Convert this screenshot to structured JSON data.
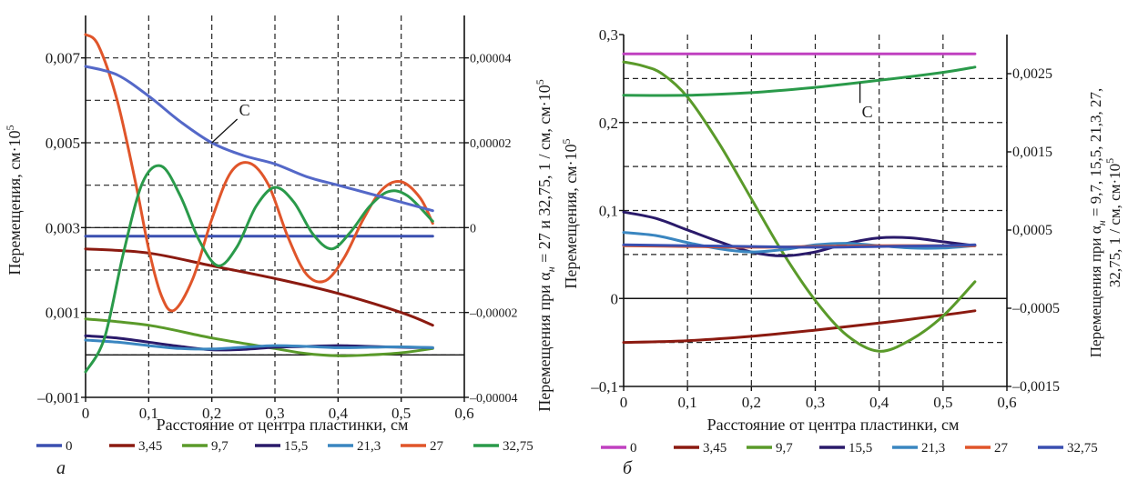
{
  "chart_data": [
    {
      "type": "line",
      "panel_label": "а",
      "xlabel": "Расстояние от центра пластинки, см",
      "ylabel_left": "Перемещения, см·10",
      "ylabel_left_sup": "5",
      "ylabel_right": "Перемещения при α",
      "ylabel_right_sub": "н",
      "ylabel_right_tail": " =  27 и 32,75, 1 / см,  см·10",
      "ylabel_right_sup": "5",
      "xlim": [
        0,
        0.6
      ],
      "ylim_left": [
        -0.001,
        0.008
      ],
      "ylim_right": [
        -4e-05,
        5e-05
      ],
      "x_ticks": [
        "0",
        "0,1",
        "0,2",
        "0,3",
        "0,4",
        "0,5",
        "0,6"
      ],
      "y_ticks_left": [
        "0,007",
        "0,005",
        "0,003",
        "0,001",
        "–0,001"
      ],
      "y_ticks_right": [
        "0,00004",
        "0,00002",
        "0",
        "–0,00002",
        "–0,00004"
      ],
      "annotations": [
        {
          "text": "C",
          "x": 0.2,
          "y": 0.005
        }
      ],
      "grid": true,
      "legend_position": "bottom",
      "series": [
        {
          "name": "0",
          "color": "#3a4fb0",
          "axis": "left",
          "x": [
            0,
            0.55
          ],
          "y": [
            0.0028,
            0.0028
          ]
        },
        {
          "name": "3,45",
          "color": "#8b1a10",
          "axis": "left",
          "x": [
            0,
            0.1,
            0.2,
            0.3,
            0.4,
            0.5,
            0.55
          ],
          "y": [
            0.0025,
            0.0024,
            0.0021,
            0.0018,
            0.00145,
            0.001,
            0.0007
          ]
        },
        {
          "name": "9,7",
          "color": "#5a9a2a",
          "axis": "left",
          "x": [
            0,
            0.1,
            0.2,
            0.3,
            0.35,
            0.4,
            0.45,
            0.5,
            0.55
          ],
          "y": [
            0.00085,
            0.0007,
            0.0004,
            0.00015,
            3e-05,
            -2e-05,
            0.0,
            5e-05,
            0.00015
          ]
        },
        {
          "name": "15,5",
          "color": "#2a1a6a",
          "axis": "left",
          "x": [
            0,
            0.05,
            0.1,
            0.15,
            0.2,
            0.25,
            0.3,
            0.35,
            0.4,
            0.45,
            0.5,
            0.55
          ],
          "y": [
            0.00045,
            0.0004,
            0.0003,
            0.0002,
            0.00012,
            0.00013,
            0.00018,
            0.0002,
            0.00022,
            0.0002,
            0.00018,
            0.00017
          ]
        },
        {
          "name": "21,3",
          "color": "#3a86c0",
          "axis": "left",
          "x": [
            0,
            0.05,
            0.1,
            0.15,
            0.2,
            0.25,
            0.3,
            0.35,
            0.4,
            0.45,
            0.5,
            0.55
          ],
          "y": [
            0.00035,
            0.0003,
            0.00022,
            0.00015,
            0.00014,
            0.00018,
            0.00022,
            0.0002,
            0.00017,
            0.00018,
            0.00019,
            0.00017
          ]
        },
        {
          "name": "27",
          "color": "#e0552a",
          "axis": "right",
          "x": [
            0,
            0.02,
            0.05,
            0.08,
            0.1,
            0.12,
            0.14,
            0.17,
            0.2,
            0.23,
            0.26,
            0.29,
            0.32,
            0.35,
            0.38,
            0.41,
            0.44,
            0.47,
            0.5,
            0.53,
            0.55
          ],
          "y": [
            4.55e-05,
            4.3e-05,
            3e-05,
            1e-05,
            -5e-06,
            -1.6e-05,
            -1.95e-05,
            -1.2e-05,
            2e-06,
            1.3e-05,
            1.52e-05,
            1e-05,
            -2e-06,
            -1.1e-05,
            -1.25e-05,
            -7e-06,
            2e-06,
            9e-06,
            1.08e-05,
            7e-06,
            1e-06
          ]
        },
        {
          "name": "32,75",
          "color": "#2a9a4a",
          "axis": "right",
          "x": [
            0,
            0.03,
            0.06,
            0.09,
            0.12,
            0.15,
            0.18,
            0.21,
            0.24,
            0.27,
            0.3,
            0.33,
            0.36,
            0.39,
            0.42,
            0.45,
            0.48,
            0.51,
            0.55
          ],
          "y": [
            -3.4e-05,
            -2.6e-05,
            -6e-06,
            1.05e-05,
            1.45e-05,
            7.5e-06,
            -3e-06,
            -9e-06,
            -4.5e-06,
            5e-06,
            9.5e-06,
            6e-06,
            -1.5e-06,
            -5e-06,
            -1e-06,
            5e-06,
            8.5e-06,
            7.5e-06,
            1.5e-06
          ]
        },
        {
          "name": "C",
          "color": "#5468c8",
          "axis": "left",
          "in_legend": false,
          "x": [
            0,
            0.05,
            0.1,
            0.15,
            0.2,
            0.25,
            0.3,
            0.35,
            0.4,
            0.45,
            0.5,
            0.55
          ],
          "y": [
            0.0068,
            0.0066,
            0.0061,
            0.0055,
            0.005,
            0.0047,
            0.0045,
            0.0042,
            0.004,
            0.0038,
            0.0036,
            0.0034
          ]
        }
      ]
    },
    {
      "type": "line",
      "panel_label": "б",
      "xlabel": "Расстояние от центра пластинки, см",
      "ylabel_left": "Перемещения, см·10",
      "ylabel_left_sup": "5",
      "ylabel_right": "Перемещения при α",
      "ylabel_right_sub": "н",
      "ylabel_right_tail": " = 9,7, 15,5, 21,3, 27,",
      "ylabel_right_line2": "32,75, 1 / см,  см·10",
      "ylabel_right_sup": "5",
      "xlim": [
        0,
        0.6
      ],
      "ylim_left": [
        -0.1,
        0.3
      ],
      "ylim_right": [
        -0.0015,
        0.003
      ],
      "x_ticks": [
        "0",
        "0,1",
        "0,2",
        "0,3",
        "0,4",
        "0,5",
        "0,6"
      ],
      "y_ticks_left": [
        "0,3",
        "0,2",
        "0,1",
        "0",
        "–0,1"
      ],
      "y_ticks_right": [
        "0,0025",
        "0,0015",
        "0,0005",
        "–0,0005",
        "–0,0015"
      ],
      "annotations": [
        {
          "text": "C",
          "x": 0.37,
          "y": 0.245
        }
      ],
      "grid": true,
      "legend_position": "bottom",
      "series": [
        {
          "name": "0",
          "color": "#c040c0",
          "axis": "left",
          "x": [
            0,
            0.55
          ],
          "y": [
            0.278,
            0.278
          ]
        },
        {
          "name": "3,45",
          "color": "#8b1a10",
          "axis": "left",
          "x": [
            0,
            0.1,
            0.2,
            0.3,
            0.4,
            0.5,
            0.55
          ],
          "y": [
            -0.05,
            -0.048,
            -0.043,
            -0.036,
            -0.028,
            -0.019,
            -0.014
          ]
        },
        {
          "name": "9,7",
          "color": "#5a9a2a",
          "axis": "right",
          "x": [
            0,
            0.03,
            0.06,
            0.1,
            0.15,
            0.2,
            0.25,
            0.3,
            0.35,
            0.4,
            0.45,
            0.5,
            0.55
          ],
          "y": [
            0.00265,
            0.0026,
            0.0025,
            0.0022,
            0.0016,
            0.0009,
            0.0002,
            -0.0004,
            -0.00085,
            -0.00105,
            -0.0009,
            -0.0006,
            -0.00016
          ]
        },
        {
          "name": "15,5",
          "color": "#2a1a6a",
          "axis": "right",
          "x": [
            0,
            0.05,
            0.1,
            0.15,
            0.2,
            0.25,
            0.3,
            0.35,
            0.4,
            0.45,
            0.5,
            0.55
          ],
          "y": [
            0.00073,
            0.00065,
            0.0005,
            0.00035,
            0.00022,
            0.00017,
            0.00022,
            0.00033,
            0.0004,
            0.0004,
            0.00035,
            0.0003
          ]
        },
        {
          "name": "21,3",
          "color": "#3a86c0",
          "axis": "right",
          "x": [
            0,
            0.05,
            0.1,
            0.15,
            0.2,
            0.25,
            0.3,
            0.35,
            0.4,
            0.45,
            0.5,
            0.55
          ],
          "y": [
            0.00047,
            0.00043,
            0.00034,
            0.00026,
            0.00022,
            0.00025,
            0.00031,
            0.00033,
            0.0003,
            0.00027,
            0.00027,
            0.0003
          ]
        },
        {
          "name": "27",
          "color": "#e0552a",
          "axis": "right",
          "x": [
            0,
            0.1,
            0.2,
            0.3,
            0.4,
            0.5,
            0.55
          ],
          "y": [
            0.0003,
            0.00029,
            0.00028,
            0.00029,
            0.0003,
            0.0003,
            0.0003
          ]
        },
        {
          "name": "32,75",
          "color": "#3a4fb0",
          "axis": "right",
          "x": [
            0,
            0.1,
            0.2,
            0.3,
            0.4,
            0.5,
            0.55
          ],
          "y": [
            0.00031,
            0.0003,
            0.00029,
            0.00028,
            0.00029,
            0.0003,
            0.00031
          ]
        },
        {
          "name": "C",
          "color": "#2a9a4a",
          "axis": "left",
          "in_legend": false,
          "x": [
            0,
            0.1,
            0.2,
            0.3,
            0.4,
            0.5,
            0.55
          ],
          "y": [
            0.231,
            0.231,
            0.234,
            0.24,
            0.248,
            0.257,
            0.263
          ]
        }
      ]
    }
  ]
}
